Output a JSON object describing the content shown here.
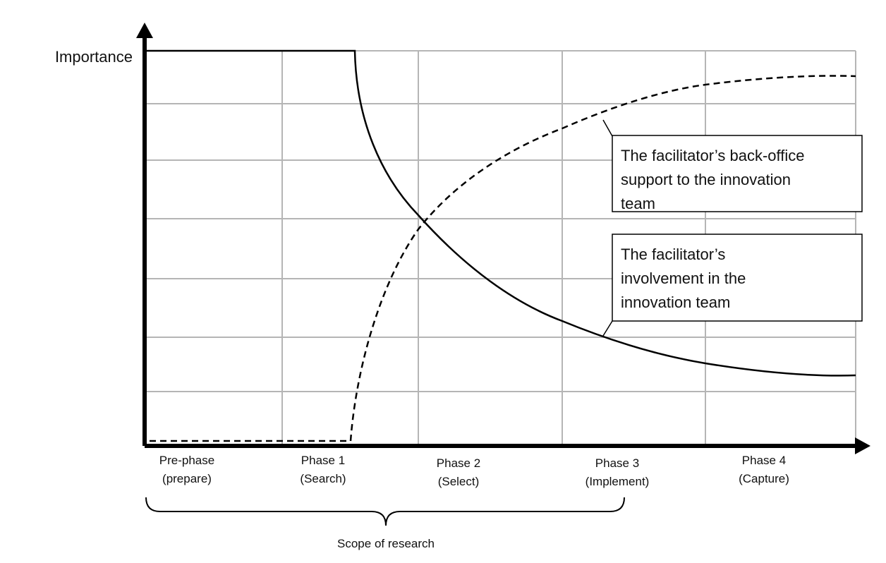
{
  "axis_label": "Importance",
  "phases": [
    {
      "name": "Pre-phase",
      "detail": "(prepare)"
    },
    {
      "name": "Phase 1",
      "detail": "(Search)"
    },
    {
      "name": "Phase 2",
      "detail": "(Select)"
    },
    {
      "name": "Phase 3",
      "detail": "(Implement)"
    },
    {
      "name": "Phase 4",
      "detail": "(Capture)"
    }
  ],
  "annotations": [
    {
      "lines": [
        "The facilitator’s back-office",
        "support to the innovation",
        "team"
      ]
    },
    {
      "lines": [
        "The facilitator’s",
        "involvement in the",
        "innovation team"
      ]
    }
  ],
  "scope_label": "Scope of research"
}
